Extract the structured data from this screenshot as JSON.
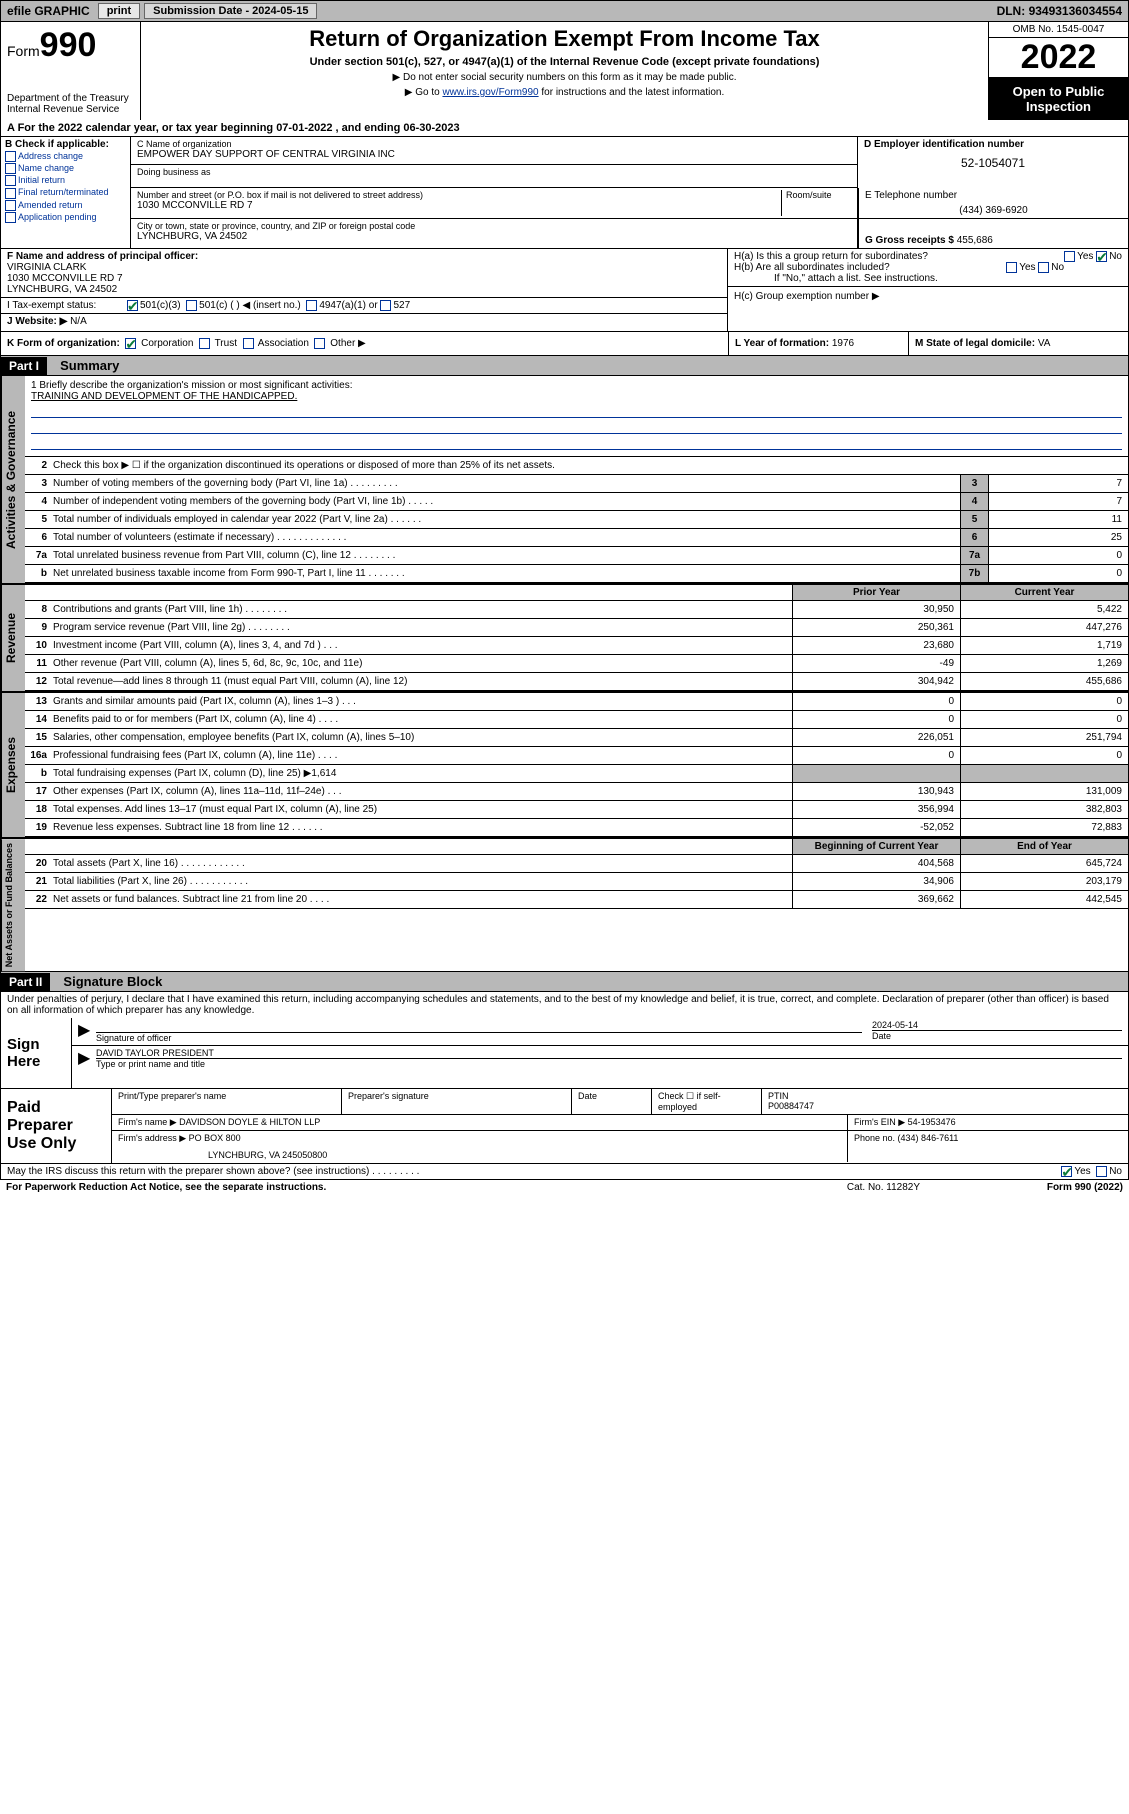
{
  "topbar": {
    "efile": "efile GRAPHIC",
    "print": "print",
    "sub_label": "Submission Date - ",
    "sub_date": "2024-05-15",
    "dln_label": "DLN: ",
    "dln": "93493136034554"
  },
  "header": {
    "form_word": "Form",
    "form_num": "990",
    "dept": "Department of the Treasury",
    "irs": "Internal Revenue Service",
    "title": "Return of Organization Exempt From Income Tax",
    "sub": "Under section 501(c), 527, or 4947(a)(1) of the Internal Revenue Code (except private foundations)",
    "arrow1": "▶ Do not enter social security numbers on this form as it may be made public.",
    "arrow2_pre": "▶ Go to ",
    "arrow2_link": "www.irs.gov/Form990",
    "arrow2_post": " for instructions and the latest information.",
    "omb": "OMB No. 1545-0047",
    "year": "2022",
    "open": "Open to Public Inspection"
  },
  "rowA": "A For the 2022 calendar year, or tax year beginning 07-01-2022   , and ending 06-30-2023",
  "boxB": {
    "hdr": "B Check if applicable:",
    "items": [
      "Address change",
      "Name change",
      "Initial return",
      "Final return/terminated",
      "Amended return",
      "Application pending"
    ]
  },
  "boxC": {
    "lbl": "C Name of organization",
    "name": "EMPOWER DAY SUPPORT OF CENTRAL VIRGINIA INC",
    "dba_lbl": "Doing business as",
    "street_lbl": "Number and street (or P.O. box if mail is not delivered to street address)",
    "room_lbl": "Room/suite",
    "street": "1030 MCCONVILLE RD 7",
    "city_lbl": "City or town, state or province, country, and ZIP or foreign postal code",
    "city": "LYNCHBURG, VA  24502"
  },
  "boxD": {
    "lbl": "D Employer identification number",
    "val": "52-1054071"
  },
  "boxE": {
    "lbl": "E Telephone number",
    "val": "(434) 369-6920"
  },
  "boxG": {
    "lbl": "G Gross receipts $ ",
    "val": "455,686"
  },
  "boxF": {
    "lbl": "F Name and address of principal officer:",
    "name": "VIRGINIA CLARK",
    "addr1": "1030 MCCONVILLE RD 7",
    "addr2": "LYNCHBURG, VA  24502"
  },
  "boxH": {
    "a": "H(a)  Is this a group return for subordinates?",
    "b": "H(b)  Are all subordinates included?",
    "note": "If \"No,\" attach a list. See instructions.",
    "c": "H(c)  Group exemption number ▶",
    "yes": "Yes",
    "no": "No"
  },
  "rowI": {
    "lbl": "I     Tax-exempt status:",
    "o1": "501(c)(3)",
    "o2": "501(c) (  ) ◀ (insert no.)",
    "o3": "4947(a)(1) or",
    "o4": "527"
  },
  "rowJ": {
    "lbl": "J    Website: ▶ ",
    "val": "N/A"
  },
  "rowK": {
    "lbl": "K Form of organization:",
    "o1": "Corporation",
    "o2": "Trust",
    "o3": "Association",
    "o4": "Other ▶",
    "l_lbl": "L Year of formation: ",
    "l_val": "1976",
    "m_lbl": "M State of legal domicile: ",
    "m_val": "VA"
  },
  "part1": {
    "hdr": "Part I",
    "title": "Summary"
  },
  "mission": {
    "q": "1   Briefly describe the organization's mission or most significant activities:",
    "text": "TRAINING AND DEVELOPMENT OF THE HANDICAPPED."
  },
  "gov_lines": [
    {
      "n": "2",
      "t": "Check this box ▶ ☐  if the organization discontinued its operations or disposed of more than 25% of its net assets.",
      "box": "",
      "v": ""
    },
    {
      "n": "3",
      "t": "Number of voting members of the governing body (Part VI, line 1a)   .    .    .    .    .    .    .    .    .",
      "box": "3",
      "v": "7"
    },
    {
      "n": "4",
      "t": "Number of independent voting members of the governing body (Part VI, line 1b)   .    .    .    .    .",
      "box": "4",
      "v": "7"
    },
    {
      "n": "5",
      "t": "Total number of individuals employed in calendar year 2022 (Part V, line 2a)   .    .    .    .    .    .",
      "box": "5",
      "v": "11"
    },
    {
      "n": "6",
      "t": "Total number of volunteers (estimate if necessary)   .    .    .    .    .    .    .    .    .    .    .    .    .",
      "box": "6",
      "v": "25"
    },
    {
      "n": "7a",
      "t": "Total unrelated business revenue from Part VIII, column (C), line 12   .    .    .    .    .    .    .    .",
      "box": "7a",
      "v": "0"
    },
    {
      "n": "b",
      "t": "Net unrelated business taxable income from Form 990-T, Part I, line 11   .    .    .    .    .    .    .",
      "box": "7b",
      "v": "0"
    }
  ],
  "colhdr": {
    "prior": "Prior Year",
    "current": "Current Year"
  },
  "rev_lines": [
    {
      "n": "8",
      "t": "Contributions and grants (Part VIII, line 1h)   .    .    .    .    .    .    .    .",
      "p": "30,950",
      "c": "5,422"
    },
    {
      "n": "9",
      "t": "Program service revenue (Part VIII, line 2g)   .    .    .    .    .    .    .    .",
      "p": "250,361",
      "c": "447,276"
    },
    {
      "n": "10",
      "t": "Investment income (Part VIII, column (A), lines 3, 4, and 7d )   .    .    .",
      "p": "23,680",
      "c": "1,719"
    },
    {
      "n": "11",
      "t": "Other revenue (Part VIII, column (A), lines 5, 6d, 8c, 9c, 10c, and 11e)",
      "p": "-49",
      "c": "1,269"
    },
    {
      "n": "12",
      "t": "Total revenue—add lines 8 through 11 (must equal Part VIII, column (A), line 12)",
      "p": "304,942",
      "c": "455,686"
    }
  ],
  "exp_lines": [
    {
      "n": "13",
      "t": "Grants and similar amounts paid (Part IX, column (A), lines 1–3 )   .    .    .",
      "p": "0",
      "c": "0"
    },
    {
      "n": "14",
      "t": "Benefits paid to or for members (Part IX, column (A), line 4)   .    .    .    .",
      "p": "0",
      "c": "0"
    },
    {
      "n": "15",
      "t": "Salaries, other compensation, employee benefits (Part IX, column (A), lines 5–10)",
      "p": "226,051",
      "c": "251,794"
    },
    {
      "n": "16a",
      "t": "Professional fundraising fees (Part IX, column (A), line 11e)   .    .    .    .",
      "p": "0",
      "c": "0"
    },
    {
      "n": "b",
      "t": "Total fundraising expenses (Part IX, column (D), line 25) ▶1,614",
      "p": "",
      "c": ""
    },
    {
      "n": "17",
      "t": "Other expenses (Part IX, column (A), lines 11a–11d, 11f–24e)   .    .    .",
      "p": "130,943",
      "c": "131,009"
    },
    {
      "n": "18",
      "t": "Total expenses. Add lines 13–17 (must equal Part IX, column (A), line 25)",
      "p": "356,994",
      "c": "382,803"
    },
    {
      "n": "19",
      "t": "Revenue less expenses. Subtract line 18 from line 12   .    .    .    .    .    .",
      "p": "-52,052",
      "c": "72,883"
    }
  ],
  "net_hdr": {
    "beg": "Beginning of Current Year",
    "end": "End of Year"
  },
  "net_lines": [
    {
      "n": "20",
      "t": "Total assets (Part X, line 16)   .    .    .    .    .    .    .    .    .    .    .    .",
      "p": "404,568",
      "c": "645,724"
    },
    {
      "n": "21",
      "t": "Total liabilities (Part X, line 26)   .    .    .    .    .    .    .    .    .    .    .",
      "p": "34,906",
      "c": "203,179"
    },
    {
      "n": "22",
      "t": "Net assets or fund balances. Subtract line 21 from line 20   .    .    .    .",
      "p": "369,662",
      "c": "442,545"
    }
  ],
  "part2": {
    "hdr": "Part II",
    "title": "Signature Block"
  },
  "penalties": "Under penalties of perjury, I declare that I have examined this return, including accompanying schedules and statements, and to the best of my knowledge and belief, it is true, correct, and complete. Declaration of preparer (other than officer) is based on all information of which preparer has any knowledge.",
  "sign": {
    "here": "Sign Here",
    "sig_lbl": "Signature of officer",
    "date_lbl": "Date",
    "date": "2024-05-14",
    "name": "DAVID TAYLOR PRESIDENT",
    "name_lbl": "Type or print name and title"
  },
  "paid": {
    "hdr": "Paid Preparer Use Only",
    "r1": {
      "c1": "Print/Type preparer's name",
      "c2": "Preparer's signature",
      "c3": "Date",
      "c4": "Check ☐ if self-employed",
      "c5_lbl": "PTIN",
      "c5": "P00884747"
    },
    "r2": {
      "lbl": "Firm's name    ▶ ",
      "val": "DAVIDSON DOYLE & HILTON LLP",
      "ein_lbl": "Firm's EIN ▶ ",
      "ein": "54-1953476"
    },
    "r3": {
      "lbl": "Firm's address ▶ ",
      "val": "PO BOX 800",
      "ph_lbl": "Phone no. ",
      "ph": "(434) 846-7611"
    },
    "r3b": "LYNCHBURG, VA  245050800"
  },
  "footer": {
    "q": "May the IRS discuss this return with the preparer shown above? (see instructions)   .    .    .    .    .    .    .    .    .",
    "yes": "Yes",
    "no": "No"
  },
  "bottom": {
    "l": "For Paperwork Reduction Act Notice, see the separate instructions.",
    "m": "Cat. No. 11282Y",
    "r": "Form 990 (2022)"
  },
  "sides": {
    "gov": "Activities & Governance",
    "rev": "Revenue",
    "exp": "Expenses",
    "net": "Net Assets or Fund Balances"
  }
}
